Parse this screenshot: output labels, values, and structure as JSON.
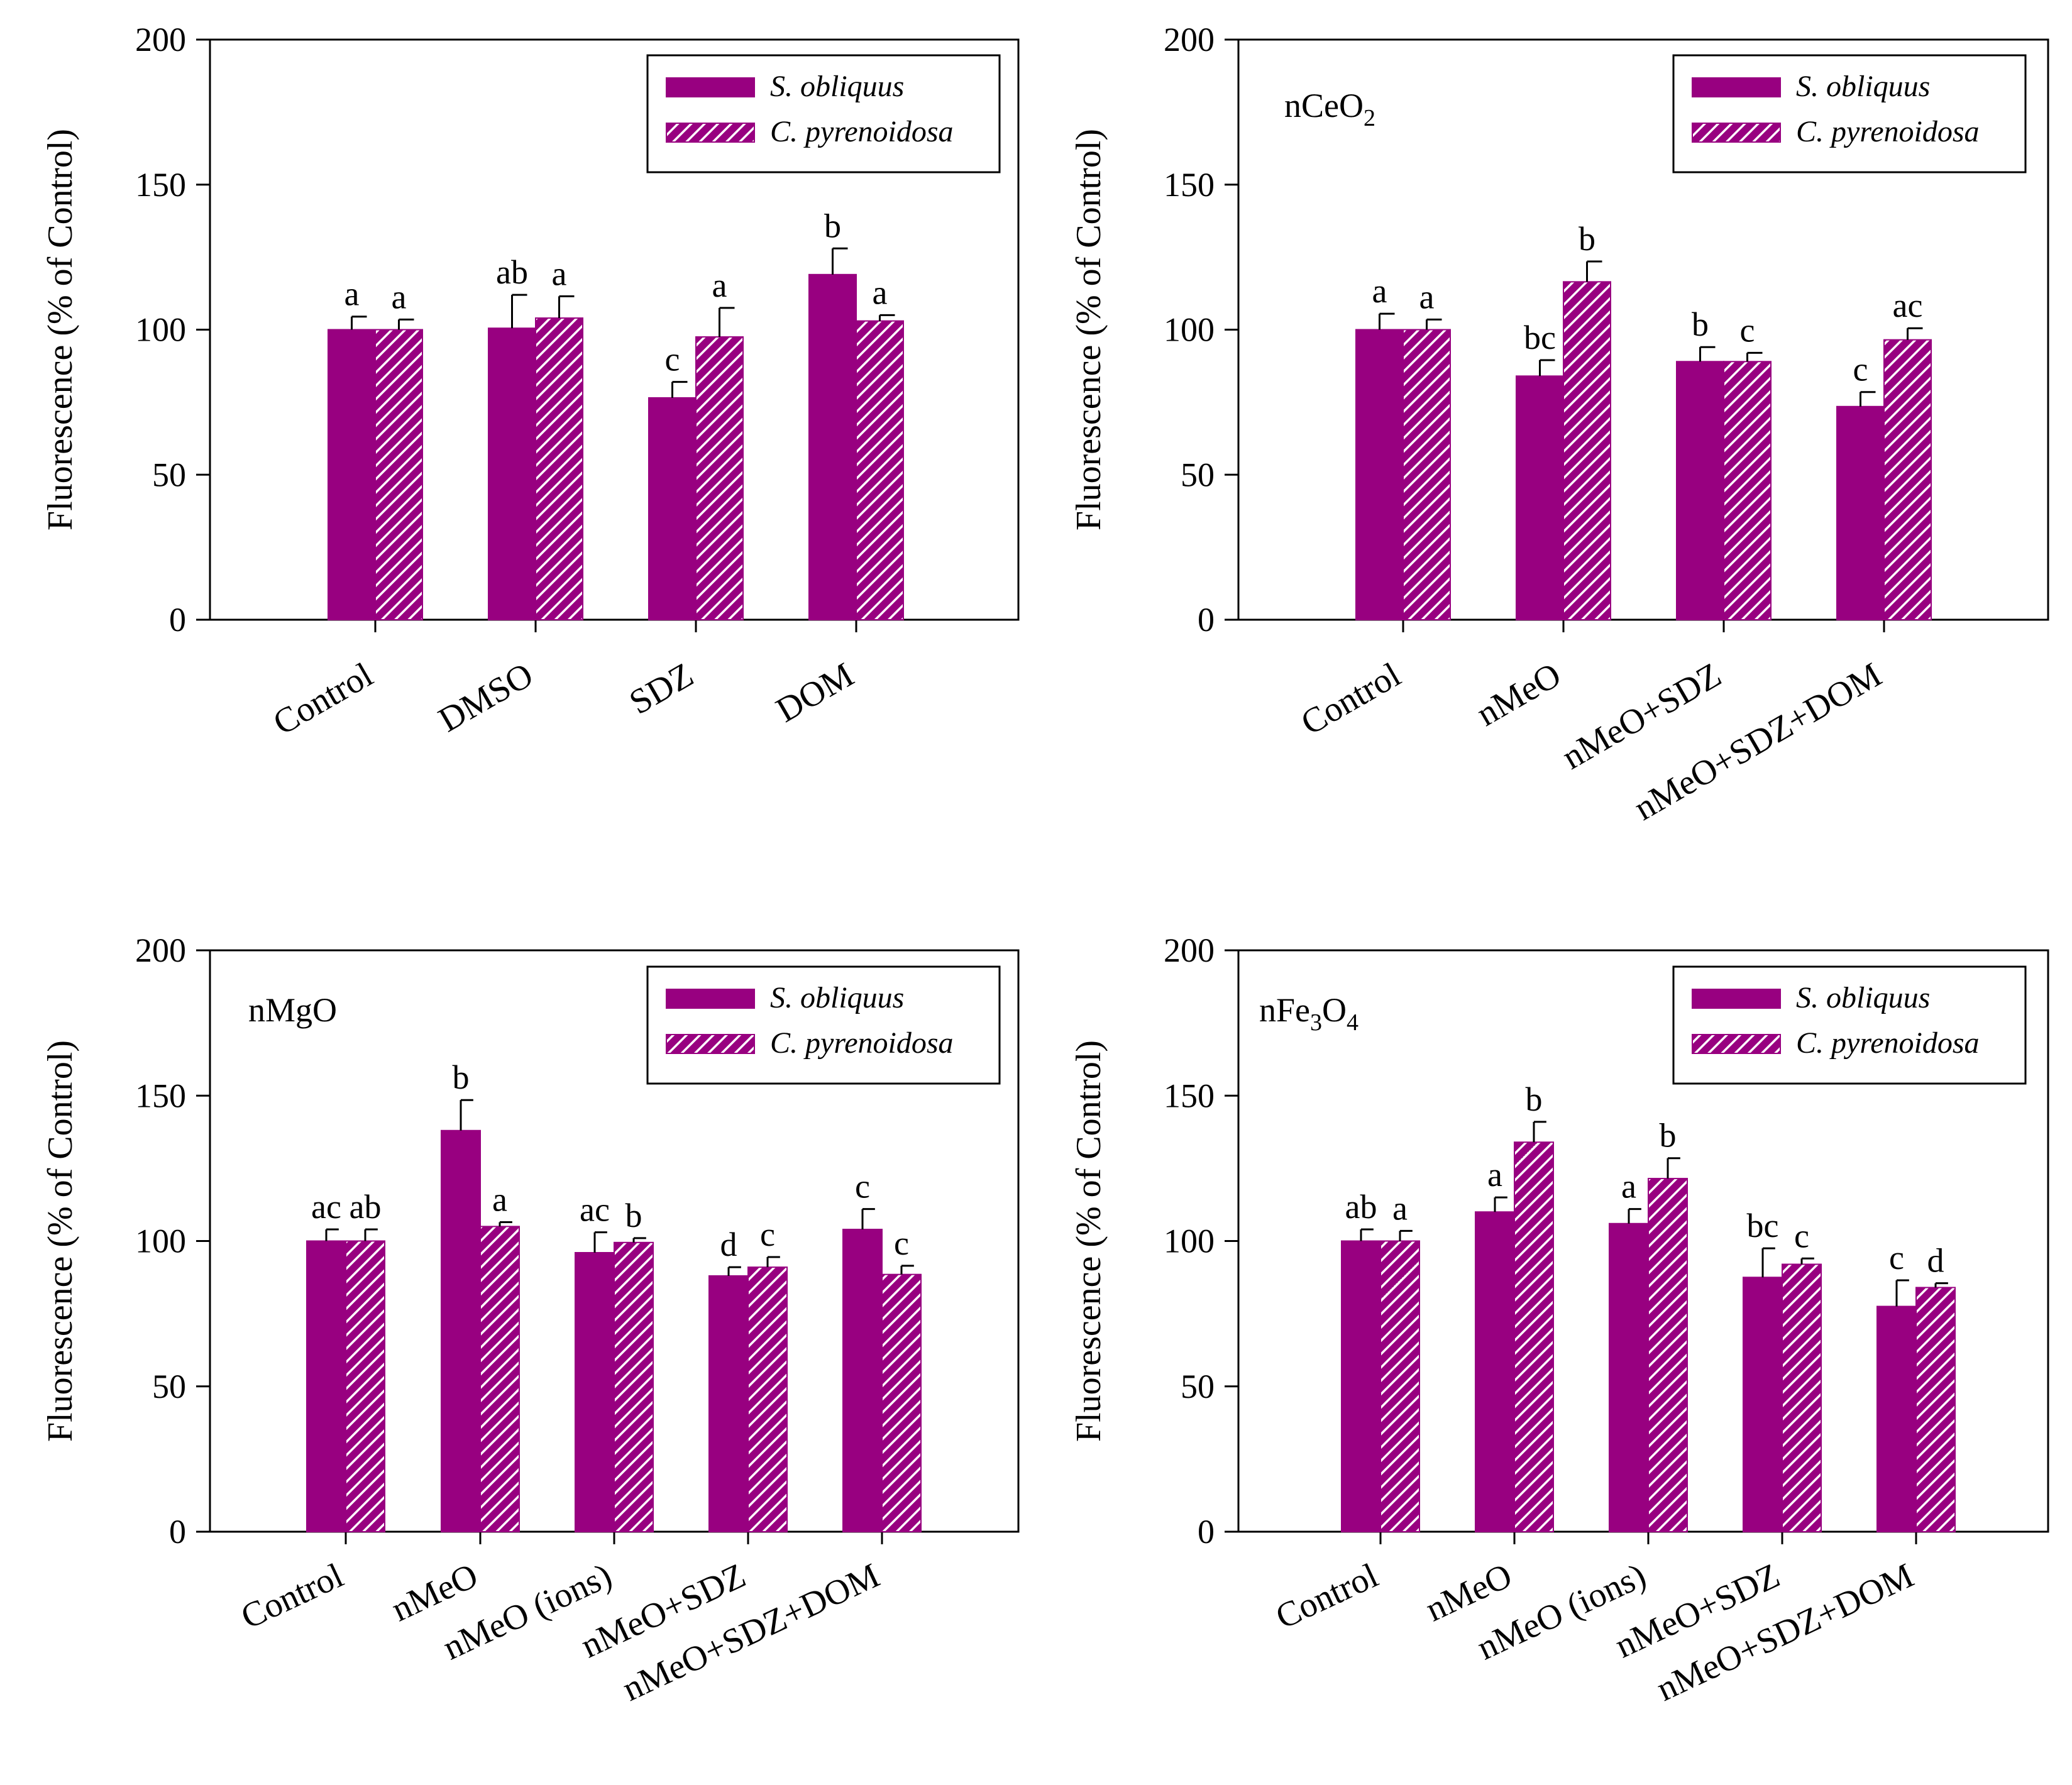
{
  "figure": {
    "colors": {
      "bar": "#980080",
      "axis": "#000000",
      "background": "#ffffff"
    },
    "legend": {
      "series": [
        "S. obliquus",
        "C. pyrenoidosa"
      ]
    }
  },
  "chart_data": [
    {
      "type": "bar",
      "title": "",
      "xlabel": "",
      "ylabel": "Fluorescence (% of Control)",
      "ylim": [
        0,
        200
      ],
      "yticks": [
        "0",
        "50",
        "100",
        "150",
        "200"
      ],
      "categories": [
        "Control",
        "DMSO",
        "SDZ",
        "DOM"
      ],
      "series": [
        {
          "name": "S. obliquus",
          "pattern": "solid",
          "values": [
            100,
            100.5,
            76.5,
            119
          ],
          "errors": [
            4.5,
            11.5,
            5.5,
            9
          ],
          "labels": [
            "a",
            "ab",
            "c",
            "b"
          ]
        },
        {
          "name": "C. pyrenoidosa",
          "pattern": "hatched",
          "values": [
            100,
            104,
            97.5,
            103
          ],
          "errors": [
            3.5,
            7.5,
            10,
            2
          ],
          "labels": [
            "a",
            "a",
            "a",
            "a"
          ]
        }
      ],
      "legend_position": "top-right"
    },
    {
      "type": "bar",
      "title": "nCeO2",
      "xlabel": "",
      "ylabel": "Fluorescence (% of Control)",
      "ylim": [
        0,
        200
      ],
      "yticks": [
        "0",
        "50",
        "100",
        "150",
        "200"
      ],
      "categories": [
        "Control",
        "nMeO",
        "nMeO+SDZ",
        "nMeO+SDZ+DOM"
      ],
      "series": [
        {
          "name": "S. obliquus",
          "pattern": "solid",
          "values": [
            100,
            84,
            89,
            73.5
          ],
          "errors": [
            5.5,
            5.5,
            5,
            5
          ],
          "labels": [
            "a",
            "bc",
            "b",
            "c"
          ]
        },
        {
          "name": "C. pyrenoidosa",
          "pattern": "hatched",
          "values": [
            100,
            116.5,
            89,
            96.5
          ],
          "errors": [
            3.5,
            7,
            3,
            4
          ],
          "labels": [
            "a",
            "b",
            "c",
            "ac"
          ]
        }
      ],
      "legend_position": "top-right"
    },
    {
      "type": "bar",
      "title": "nMgO",
      "xlabel": "",
      "ylabel": "Fluorescence (% of Control)",
      "ylim": [
        0,
        200
      ],
      "yticks": [
        "0",
        "50",
        "100",
        "150",
        "200"
      ],
      "categories": [
        "Control",
        "nMeO",
        "nMeO (ions)",
        "nMeO+SDZ",
        "nMeO+SDZ+DOM"
      ],
      "series": [
        {
          "name": "S. obliquus",
          "pattern": "solid",
          "values": [
            100,
            138,
            96,
            88,
            104
          ],
          "errors": [
            4,
            10.5,
            7,
            3,
            7
          ],
          "labels": [
            "ac",
            "b",
            "ac",
            "d",
            "c"
          ]
        },
        {
          "name": "C. pyrenoidosa",
          "pattern": "hatched",
          "values": [
            100,
            105,
            99.5,
            91,
            88.5
          ],
          "errors": [
            4,
            1.5,
            1.5,
            3.5,
            3
          ],
          "labels": [
            "ab",
            "a",
            "b",
            "c",
            "c"
          ]
        }
      ],
      "legend_position": "top-right"
    },
    {
      "type": "bar",
      "title": "nFe3O4",
      "xlabel": "",
      "ylabel": "Fluorescence (% of Control)",
      "ylim": [
        0,
        200
      ],
      "yticks": [
        "0",
        "50",
        "100",
        "150",
        "200"
      ],
      "categories": [
        "Control",
        "nMeO",
        "nMeO (ions)",
        "nMeO+SDZ",
        "nMeO+SDZ+DOM"
      ],
      "series": [
        {
          "name": "S. obliquus",
          "pattern": "solid",
          "values": [
            100,
            110,
            106,
            87.5,
            77.5
          ],
          "errors": [
            4,
            5,
            5,
            10,
            9
          ],
          "labels": [
            "ab",
            "a",
            "a",
            "bc",
            "c"
          ]
        },
        {
          "name": "C. pyrenoidosa",
          "pattern": "hatched",
          "values": [
            100,
            134,
            121.5,
            92,
            84
          ],
          "errors": [
            3.5,
            7,
            7,
            2,
            1.5
          ],
          "labels": [
            "a",
            "b",
            "b",
            "c",
            "d"
          ]
        }
      ],
      "legend_position": "top-right"
    }
  ]
}
